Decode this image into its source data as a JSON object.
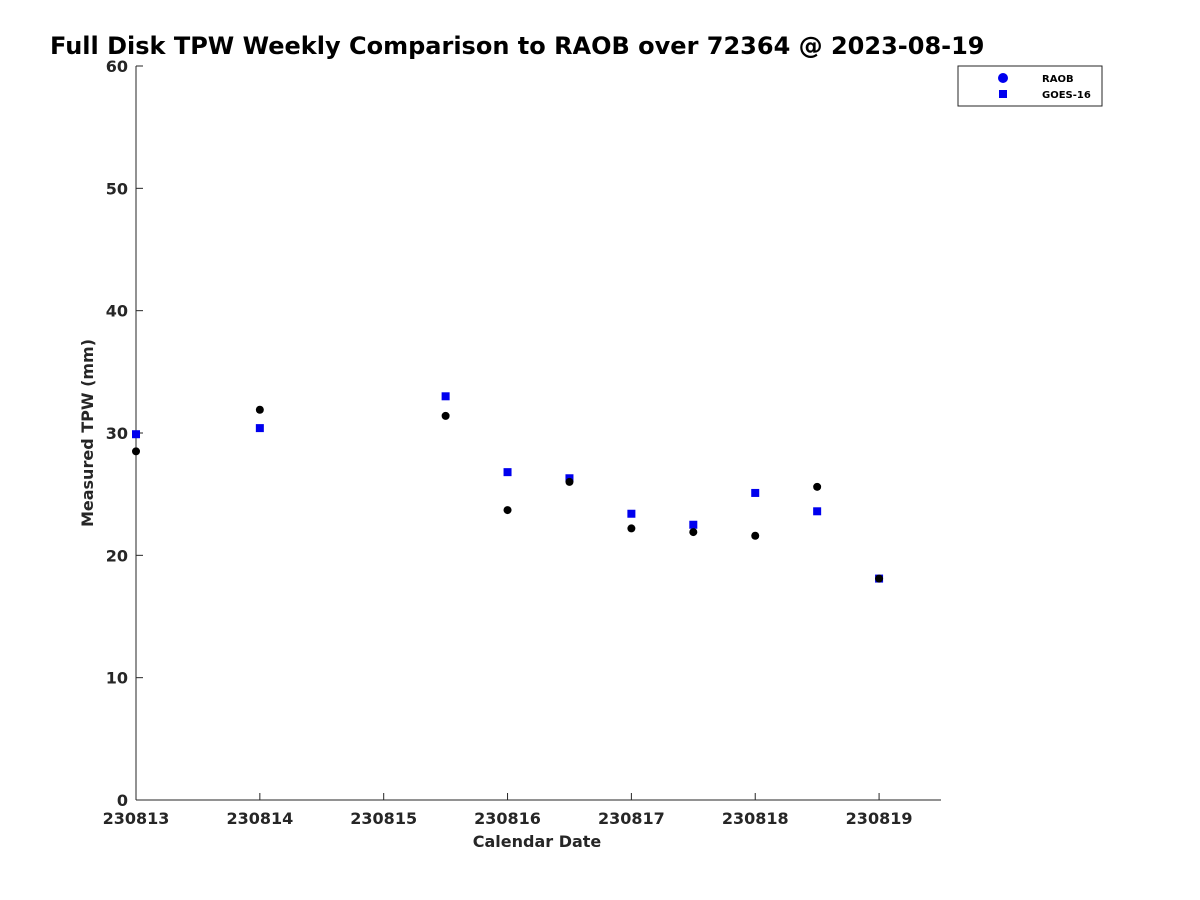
{
  "chart_data": {
    "type": "scatter",
    "title": "Full Disk TPW Weekly Comparison to RAOB over 72364 @ 2023-08-19",
    "xlabel": "Calendar Date",
    "ylabel": "Measured TPW (mm)",
    "xlim": [
      230813,
      230819.5
    ],
    "ylim": [
      0,
      60
    ],
    "x_ticks": [
      {
        "value": 230813,
        "label": "230813"
      },
      {
        "value": 230814,
        "label": "230814"
      },
      {
        "value": 230815,
        "label": "230815"
      },
      {
        "value": 230816,
        "label": "230816"
      },
      {
        "value": 230817,
        "label": "230817"
      },
      {
        "value": 230818,
        "label": "230818"
      },
      {
        "value": 230819,
        "label": "230819"
      }
    ],
    "y_ticks": [
      {
        "value": 0,
        "label": "0"
      },
      {
        "value": 10,
        "label": "10"
      },
      {
        "value": 20,
        "label": "20"
      },
      {
        "value": 30,
        "label": "30"
      },
      {
        "value": 40,
        "label": "40"
      },
      {
        "value": 50,
        "label": "50"
      },
      {
        "value": 60,
        "label": "60"
      }
    ],
    "grid": false,
    "legend_position": "top-right",
    "series": [
      {
        "name": "RAOB",
        "marker": "circle",
        "color": "#000000",
        "legend_color": "#0000ee",
        "points": [
          {
            "x": 230813.0,
            "y": 28.5
          },
          {
            "x": 230814.0,
            "y": 31.9
          },
          {
            "x": 230815.5,
            "y": 31.4
          },
          {
            "x": 230816.0,
            "y": 23.7
          },
          {
            "x": 230816.5,
            "y": 26.0
          },
          {
            "x": 230817.0,
            "y": 22.2
          },
          {
            "x": 230817.5,
            "y": 21.9
          },
          {
            "x": 230818.0,
            "y": 21.6
          },
          {
            "x": 230818.5,
            "y": 25.6
          },
          {
            "x": 230819.0,
            "y": 18.1
          }
        ]
      },
      {
        "name": "GOES-16",
        "marker": "square",
        "color": "#0000ee",
        "legend_color": "#0000ee",
        "points": [
          {
            "x": 230813.0,
            "y": 29.9
          },
          {
            "x": 230814.0,
            "y": 30.4
          },
          {
            "x": 230815.5,
            "y": 33.0
          },
          {
            "x": 230816.0,
            "y": 26.8
          },
          {
            "x": 230816.5,
            "y": 26.3
          },
          {
            "x": 230817.0,
            "y": 23.4
          },
          {
            "x": 230817.5,
            "y": 22.5
          },
          {
            "x": 230818.0,
            "y": 25.1
          },
          {
            "x": 230818.5,
            "y": 23.6
          },
          {
            "x": 230819.0,
            "y": 18.1
          }
        ]
      }
    ]
  }
}
